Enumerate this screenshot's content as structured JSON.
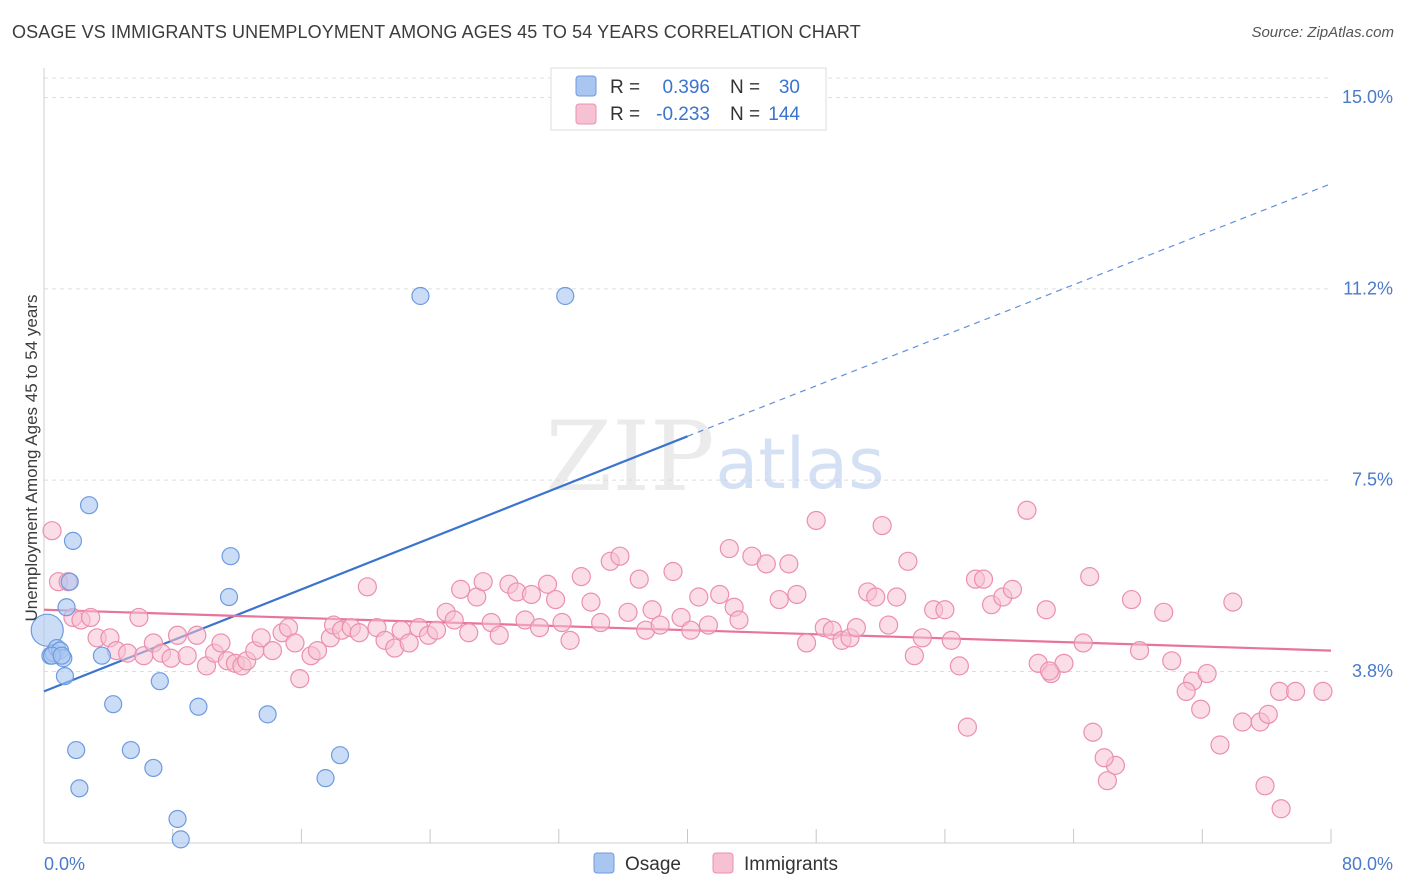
{
  "title": "OSAGE VS IMMIGRANTS UNEMPLOYMENT AMONG AGES 45 TO 54 YEARS CORRELATION CHART",
  "source": "Source: ZipAtlas.com",
  "watermark": {
    "zip": "ZIP",
    "atlas": "atlas"
  },
  "legend": {
    "r_label": "R =",
    "n_label": "N =",
    "rows": [
      {
        "r": "0.396",
        "n": "30",
        "color": "#a9c6f0",
        "stroke": "#6d9be0"
      },
      {
        "r": "-0.233",
        "n": "144",
        "color": "#f6c1d2",
        "stroke": "#ec8fae"
      }
    ]
  },
  "bottom_legend": [
    "Osage",
    "Immigrants"
  ],
  "chart_data": {
    "type": "scatter",
    "ylabel": "Unemployment Among Ages 45 to 54 years",
    "x_tick_labels": [
      "0.0%",
      "80.0%"
    ],
    "y_tick_labels": [
      "15.0%",
      "11.2%",
      "7.5%",
      "3.8%"
    ],
    "y_ticks": [
      15.0,
      11.25,
      7.5,
      3.75
    ],
    "xlim": [
      0,
      80
    ],
    "ylim": [
      0,
      15.3
    ],
    "grid": true,
    "colors": {
      "osage": "#3a74cf",
      "immigrants": "#e8739c"
    },
    "series": [
      {
        "name": "Osage",
        "trend": {
          "x": [
            0,
            40
          ],
          "y": [
            3.35,
            8.35
          ],
          "dashed_to": [
            80,
            13.3
          ]
        },
        "points": [
          [
            0.2,
            4.55
          ],
          [
            0.4,
            4.05
          ],
          [
            0.6,
            4.1
          ],
          [
            0.8,
            4.2
          ],
          [
            1.0,
            4.15
          ],
          [
            1.2,
            4.0
          ],
          [
            1.3,
            3.65
          ],
          [
            1.4,
            5.0
          ],
          [
            1.6,
            5.5
          ],
          [
            1.8,
            6.3
          ],
          [
            2.0,
            2.2
          ],
          [
            2.2,
            1.45
          ],
          [
            2.8,
            7.0
          ],
          [
            3.6,
            4.05
          ],
          [
            4.3,
            3.1
          ],
          [
            5.4,
            2.2
          ],
          [
            6.8,
            1.85
          ],
          [
            7.2,
            3.55
          ],
          [
            8.3,
            0.85
          ],
          [
            8.5,
            0.45
          ],
          [
            9.6,
            3.05
          ],
          [
            11.5,
            5.2
          ],
          [
            11.6,
            6.0
          ],
          [
            13.9,
            2.9
          ],
          [
            17.5,
            1.65
          ],
          [
            18.4,
            2.1
          ],
          [
            23.4,
            11.1
          ],
          [
            32.4,
            11.1
          ],
          [
            0.5,
            4.05
          ],
          [
            1.1,
            4.05
          ]
        ]
      },
      {
        "name": "Immigrants",
        "trend": {
          "x": [
            0,
            80
          ],
          "y": [
            4.95,
            4.15
          ]
        },
        "points": [
          [
            0.5,
            6.5
          ],
          [
            0.9,
            5.5
          ],
          [
            1.5,
            5.5
          ],
          [
            1.8,
            4.8
          ],
          [
            2.3,
            4.75
          ],
          [
            2.9,
            4.8
          ],
          [
            3.3,
            4.4
          ],
          [
            4.1,
            4.4
          ],
          [
            4.5,
            4.15
          ],
          [
            5.2,
            4.1
          ],
          [
            5.9,
            4.8
          ],
          [
            6.2,
            4.05
          ],
          [
            6.8,
            4.3
          ],
          [
            7.3,
            4.1
          ],
          [
            7.9,
            4.0
          ],
          [
            8.3,
            4.45
          ],
          [
            8.9,
            4.05
          ],
          [
            9.5,
            4.45
          ],
          [
            10.1,
            3.85
          ],
          [
            10.6,
            4.1
          ],
          [
            11.0,
            4.3
          ],
          [
            11.4,
            3.95
          ],
          [
            11.9,
            3.9
          ],
          [
            12.3,
            3.85
          ],
          [
            12.6,
            3.95
          ],
          [
            13.1,
            4.15
          ],
          [
            13.5,
            4.4
          ],
          [
            14.2,
            4.15
          ],
          [
            14.8,
            4.5
          ],
          [
            15.2,
            4.6
          ],
          [
            15.6,
            4.3
          ],
          [
            15.9,
            3.6
          ],
          [
            16.6,
            4.05
          ],
          [
            17.0,
            4.15
          ],
          [
            17.8,
            4.4
          ],
          [
            18.0,
            4.65
          ],
          [
            18.5,
            4.55
          ],
          [
            19.1,
            4.6
          ],
          [
            19.6,
            4.5
          ],
          [
            20.1,
            5.4
          ],
          [
            20.7,
            4.6
          ],
          [
            21.2,
            4.35
          ],
          [
            21.8,
            4.2
          ],
          [
            22.2,
            4.55
          ],
          [
            22.7,
            4.3
          ],
          [
            23.3,
            4.6
          ],
          [
            23.9,
            4.45
          ],
          [
            24.4,
            4.55
          ],
          [
            25.0,
            4.9
          ],
          [
            25.5,
            4.75
          ],
          [
            25.9,
            5.35
          ],
          [
            26.4,
            4.5
          ],
          [
            26.9,
            5.2
          ],
          [
            27.3,
            5.5
          ],
          [
            27.8,
            4.7
          ],
          [
            28.3,
            4.45
          ],
          [
            28.9,
            5.45
          ],
          [
            29.4,
            5.3
          ],
          [
            29.9,
            4.75
          ],
          [
            30.3,
            5.25
          ],
          [
            30.8,
            4.6
          ],
          [
            31.3,
            5.45
          ],
          [
            31.8,
            5.15
          ],
          [
            32.2,
            4.7
          ],
          [
            32.7,
            4.35
          ],
          [
            33.4,
            5.6
          ],
          [
            34.0,
            5.1
          ],
          [
            34.6,
            4.7
          ],
          [
            35.2,
            5.9
          ],
          [
            35.8,
            6.0
          ],
          [
            36.3,
            4.9
          ],
          [
            37.0,
            5.55
          ],
          [
            37.4,
            4.55
          ],
          [
            37.8,
            4.95
          ],
          [
            38.3,
            4.65
          ],
          [
            39.1,
            5.7
          ],
          [
            39.6,
            4.8
          ],
          [
            40.2,
            4.55
          ],
          [
            40.7,
            5.2
          ],
          [
            41.3,
            4.65
          ],
          [
            42.0,
            5.25
          ],
          [
            42.6,
            6.15
          ],
          [
            42.9,
            5.0
          ],
          [
            43.2,
            4.75
          ],
          [
            44.0,
            6.0
          ],
          [
            44.9,
            5.85
          ],
          [
            45.7,
            5.15
          ],
          [
            46.3,
            5.85
          ],
          [
            46.8,
            5.25
          ],
          [
            47.4,
            4.3
          ],
          [
            48.0,
            6.7
          ],
          [
            48.5,
            4.6
          ],
          [
            49.0,
            4.55
          ],
          [
            49.6,
            4.35
          ],
          [
            50.1,
            4.4
          ],
          [
            50.5,
            4.6
          ],
          [
            51.2,
            5.3
          ],
          [
            51.7,
            5.2
          ],
          [
            52.1,
            6.6
          ],
          [
            52.5,
            4.65
          ],
          [
            53.0,
            5.2
          ],
          [
            53.7,
            5.9
          ],
          [
            54.1,
            4.05
          ],
          [
            54.6,
            4.4
          ],
          [
            55.3,
            4.95
          ],
          [
            56.0,
            4.95
          ],
          [
            56.4,
            4.35
          ],
          [
            56.9,
            3.85
          ],
          [
            57.4,
            2.65
          ],
          [
            57.9,
            5.55
          ],
          [
            58.4,
            5.55
          ],
          [
            58.9,
            5.05
          ],
          [
            59.6,
            5.2
          ],
          [
            60.2,
            5.35
          ],
          [
            61.1,
            6.9
          ],
          [
            61.8,
            3.9
          ],
          [
            62.3,
            4.95
          ],
          [
            62.6,
            3.7
          ],
          [
            63.4,
            3.9
          ],
          [
            64.6,
            4.3
          ],
          [
            65.0,
            5.6
          ],
          [
            65.2,
            2.55
          ],
          [
            66.1,
            1.6
          ],
          [
            66.6,
            1.9
          ],
          [
            67.6,
            5.15
          ],
          [
            68.1,
            4.15
          ],
          [
            69.6,
            4.9
          ],
          [
            70.1,
            3.95
          ],
          [
            71.4,
            3.55
          ],
          [
            71.9,
            3.0
          ],
          [
            72.3,
            3.7
          ],
          [
            73.1,
            2.3
          ],
          [
            73.9,
            5.1
          ],
          [
            74.5,
            2.75
          ],
          [
            75.6,
            2.75
          ],
          [
            76.1,
            2.9
          ],
          [
            76.8,
            3.35
          ],
          [
            77.8,
            3.35
          ],
          [
            79.5,
            3.35
          ],
          [
            75.9,
            1.5
          ],
          [
            76.9,
            1.05
          ],
          [
            71.0,
            3.35
          ],
          [
            65.9,
            2.05
          ],
          [
            62.5,
            3.75
          ]
        ]
      }
    ]
  }
}
